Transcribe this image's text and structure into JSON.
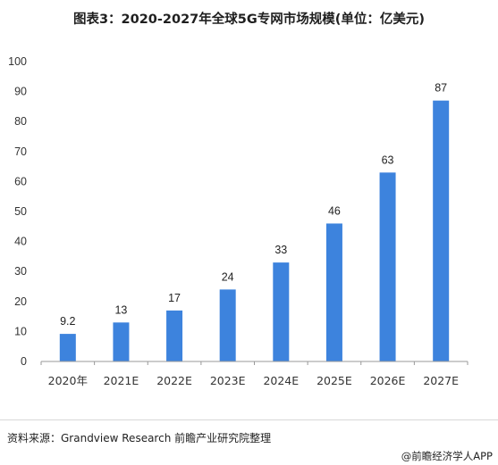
{
  "title": "图表3：2020-2027年全球5G专网市场规模(单位：亿美元)",
  "chart_data": {
    "type": "bar",
    "categories": [
      "2020年",
      "2021E",
      "2022E",
      "2023E",
      "2024E",
      "2025E",
      "2026E",
      "2027E"
    ],
    "values": [
      9.2,
      13,
      17,
      24,
      33,
      46,
      63,
      87
    ],
    "data_labels": [
      "9.2",
      "13",
      "17",
      "24",
      "33",
      "46",
      "63",
      "87"
    ],
    "ylim": [
      0,
      100
    ],
    "yticks": [
      0,
      10,
      20,
      30,
      40,
      50,
      60,
      70,
      80,
      90,
      100
    ],
    "grid": false,
    "bar_color": "#3d83dd",
    "axis_color": "#999999"
  },
  "source": "资料来源：Grandview Research 前瞻产业研究院整理",
  "brand": "@前瞻经济学人APP"
}
